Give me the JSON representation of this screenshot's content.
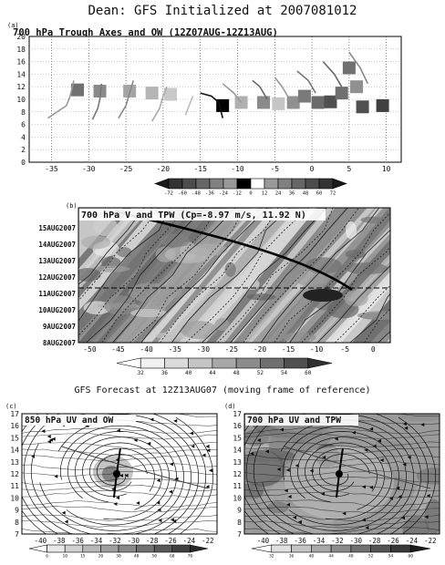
{
  "header": {
    "title": "Dean: GFS Initialized at 2007081012"
  },
  "panel_a": {
    "letter": "(a)",
    "title": "700 hPa Trough Axes and OW (12Z07AUG-12Z13AUG)",
    "x_ticks": [
      "-35",
      "-30",
      "-25",
      "-20",
      "-15",
      "-10",
      "-5",
      "0",
      "5",
      "10"
    ],
    "y_ticks": [
      "0",
      "2",
      "4",
      "6",
      "8",
      "10",
      "12",
      "14",
      "16",
      "18",
      "20"
    ],
    "colorbar": [
      "-72",
      "-60",
      "-48",
      "-36",
      "-24",
      "-12",
      "0",
      "12",
      "24",
      "36",
      "48",
      "60",
      "72"
    ]
  },
  "panel_b": {
    "letter": "(b)",
    "title": "700 hPa V and TPW (Cp=-8.97 m/s, 11.92 N)",
    "y_ticks": [
      "15AUG2007",
      "14AUG2007",
      "13AUG2007",
      "12AUG2007",
      "11AUG2007",
      "10AUG2007",
      "9AUG2007",
      "8AUG2007"
    ],
    "x_ticks": [
      "-50",
      "-45",
      "-40",
      "-35",
      "-30",
      "-25",
      "-20",
      "-15",
      "-10",
      "-5",
      "0"
    ],
    "colorbar": [
      "32",
      "36",
      "40",
      "44",
      "48",
      "52",
      "54",
      "60"
    ]
  },
  "forecast_title": "GFS Forecast at 12Z13AUG07 (moving frame of reference)",
  "panel_c": {
    "letter": "(c)",
    "title": "850 hPa UV and OW",
    "y_ticks": [
      "17",
      "16",
      "15",
      "14",
      "13",
      "12",
      "11",
      "10",
      "9",
      "8",
      "7"
    ],
    "x_ticks": [
      "-40",
      "-38",
      "-36",
      "-34",
      "-32",
      "-30",
      "-28",
      "-26",
      "-24",
      "-22"
    ],
    "colorbar": [
      "6",
      "10",
      "15",
      "20",
      "30",
      "40",
      "50",
      "60",
      "70"
    ]
  },
  "panel_d": {
    "letter": "(d)",
    "title": "700 hPa UV and TPW",
    "y_ticks": [
      "17",
      "16",
      "15",
      "14",
      "13",
      "12",
      "11",
      "10",
      "9",
      "8",
      "7"
    ],
    "x_ticks": [
      "-40",
      "-38",
      "-36",
      "-34",
      "-32",
      "-30",
      "-28",
      "-26",
      "-24",
      "-22"
    ],
    "colorbar": [
      "32",
      "36",
      "40",
      "44",
      "48",
      "52",
      "54",
      "60"
    ]
  },
  "chart_data": [
    {
      "type": "scatter",
      "title": "700 hPa Trough Axes and OW (12Z07AUG-12Z13AUG)",
      "xlim": [
        -38,
        12
      ],
      "ylim": [
        0,
        20
      ],
      "grid": true,
      "ow_boxes": [
        {
          "x": -31.5,
          "y": 11.5,
          "shade": "#707070"
        },
        {
          "x": -28.5,
          "y": 11.3,
          "shade": "#8a8a8a"
        },
        {
          "x": -24.5,
          "y": 11.3,
          "shade": "#a5a5a5"
        },
        {
          "x": -21.5,
          "y": 11.0,
          "shade": "#b5b5b5"
        },
        {
          "x": -19.0,
          "y": 10.8,
          "shade": "#c8c8c8"
        },
        {
          "x": -12.0,
          "y": 9.0,
          "shade": "#000000"
        },
        {
          "x": -9.5,
          "y": 9.5,
          "shade": "#b0b0b0"
        },
        {
          "x": -6.5,
          "y": 9.5,
          "shade": "#8a8a8a"
        },
        {
          "x": -4.5,
          "y": 9.3,
          "shade": "#c5c5c5"
        },
        {
          "x": -2.5,
          "y": 9.5,
          "shade": "#909090"
        },
        {
          "x": -1.0,
          "y": 10.5,
          "shade": "#7a7a7a"
        },
        {
          "x": 0.8,
          "y": 9.5,
          "shade": "#6a6a6a"
        },
        {
          "x": 2.5,
          "y": 9.6,
          "shade": "#505050"
        },
        {
          "x": 4.0,
          "y": 11.0,
          "shade": "#707070"
        },
        {
          "x": 5.0,
          "y": 15.0,
          "shade": "#707070"
        },
        {
          "x": 6.0,
          "y": 12.0,
          "shade": "#909090"
        },
        {
          "x": 6.8,
          "y": 8.8,
          "shade": "#505050"
        },
        {
          "x": 9.5,
          "y": 9.0,
          "shade": "#404040"
        }
      ],
      "trough_axes": [
        {
          "shade": "#999999",
          "points": [
            [
              -35.5,
              7
            ],
            [
              -34.5,
              7.8
            ],
            [
              -33,
              9
            ],
            [
              -32.5,
              10.5
            ],
            [
              -32,
              13
            ]
          ]
        },
        {
          "shade": "#777777",
          "points": [
            [
              -29.5,
              6.8
            ],
            [
              -28.8,
              8.5
            ],
            [
              -28.5,
              10
            ],
            [
              -28.3,
              12.5
            ]
          ]
        },
        {
          "shade": "#888888",
          "points": [
            [
              -26,
              7
            ],
            [
              -25,
              9
            ],
            [
              -24.5,
              11
            ],
            [
              -24,
              13
            ]
          ]
        },
        {
          "shade": "#aaaaaa",
          "points": [
            [
              -21.5,
              6.5
            ],
            [
              -20.5,
              8.5
            ],
            [
              -20,
              10.5
            ],
            [
              -19.5,
              12
            ]
          ]
        },
        {
          "shade": "#bbbbbb",
          "points": [
            [
              -17,
              7.5
            ],
            [
              -16.5,
              9
            ],
            [
              -16,
              10.5
            ]
          ]
        },
        {
          "shade": "#111111",
          "points": [
            [
              -15,
              11
            ],
            [
              -13.5,
              10.5
            ],
            [
              -12.5,
              9.5
            ],
            [
              -12,
              7
            ]
          ]
        },
        {
          "shade": "#999999",
          "points": [
            [
              -12,
              12.5
            ],
            [
              -10.5,
              11
            ],
            [
              -9.5,
              9.5
            ]
          ]
        },
        {
          "shade": "#666666",
          "points": [
            [
              -8,
              13
            ],
            [
              -7,
              12
            ],
            [
              -6,
              10
            ]
          ]
        },
        {
          "shade": "#999999",
          "points": [
            [
              -5,
              13.5
            ],
            [
              -4,
              12
            ],
            [
              -3,
              10
            ]
          ]
        },
        {
          "shade": "#777777",
          "points": [
            [
              -2,
              14.5
            ],
            [
              -0.5,
              13
            ],
            [
              0.5,
              11
            ]
          ]
        },
        {
          "shade": "#666666",
          "points": [
            [
              1.5,
              16
            ],
            [
              3,
              14
            ],
            [
              4,
              12
            ]
          ]
        },
        {
          "shade": "#888888",
          "points": [
            [
              5,
              17.5
            ],
            [
              6.5,
              15
            ],
            [
              7.5,
              12.5
            ]
          ]
        }
      ]
    },
    {
      "type": "heatmap",
      "title": "700 hPa V and TPW (Cp=-8.97 m/s, 11.92 N)",
      "xlim": [
        -52,
        3
      ],
      "ylabels": [
        "15AUG2007",
        "14AUG2007",
        "13AUG2007",
        "12AUG2007",
        "11AUG2007",
        "10AUG2007",
        "9AUG2007",
        "8AUG2007"
      ],
      "colorbar": [
        32,
        36,
        40,
        44,
        48,
        52,
        54,
        60
      ]
    },
    {
      "type": "heatmap",
      "title": "850 hPa UV and OW",
      "xlim": [
        -42,
        -21
      ],
      "ylim": [
        7,
        17
      ],
      "center": [
        -31.8,
        12
      ]
    },
    {
      "type": "heatmap",
      "title": "700 hPa UV and TPW",
      "xlim": [
        -42,
        -21
      ],
      "ylim": [
        7,
        17
      ],
      "center": [
        -31.8,
        12
      ]
    }
  ]
}
